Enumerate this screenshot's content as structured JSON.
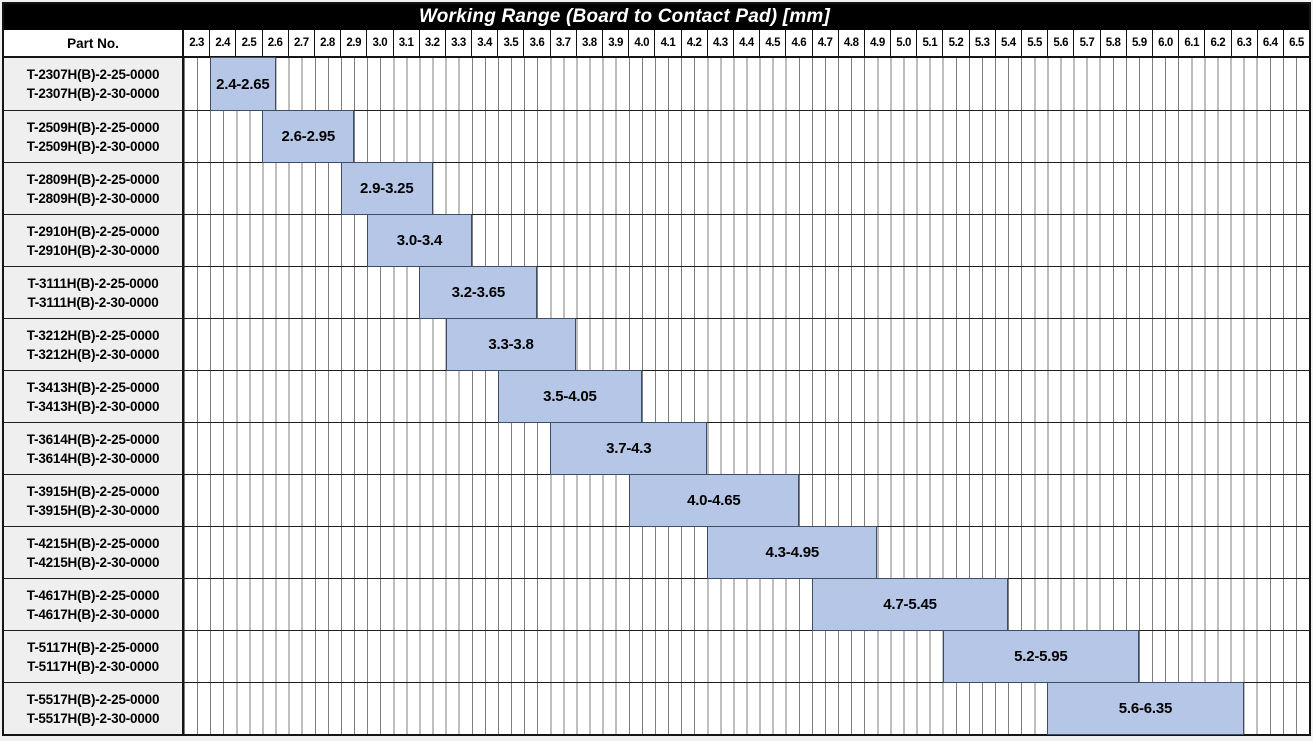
{
  "header": {
    "part_no_label": "Part No."
  },
  "colors": {
    "title_bg": "#000000",
    "title_text": "#ffffff",
    "bar_fill": "#b5c6e6",
    "bar_border": "#3c4d66",
    "part_cell_bg": "#efefef",
    "grid_line": "#7e7e7e"
  },
  "chart_data": {
    "type": "bar",
    "subtype": "horizontal_range_gantt",
    "title": "Working Range (Board to Contact Pad) [mm]",
    "unit": "mm",
    "legend": "none",
    "grid": "on",
    "x_axis": {
      "min": 2.3,
      "max_tick": 6.5,
      "right_edge": 6.6,
      "step": 0.1,
      "minor_step": 0.05,
      "tick_labels": [
        "2.3",
        "2.4",
        "2.5",
        "2.6",
        "2.7",
        "2.8",
        "2.9",
        "3.0",
        "3.1",
        "3.2",
        "3.3",
        "3.4",
        "3.5",
        "3.6",
        "3.7",
        "3.8",
        "3.9",
        "4.0",
        "4.1",
        "4.2",
        "4.3",
        "4.4",
        "4.5",
        "4.6",
        "4.7",
        "4.8",
        "4.9",
        "5.0",
        "5.1",
        "5.2",
        "5.3",
        "5.4",
        "5.5",
        "5.6",
        "5.7",
        "5.8",
        "5.9",
        "6.0",
        "6.1",
        "6.2",
        "6.3",
        "6.4",
        "6.5"
      ]
    },
    "rows": [
      {
        "part_numbers": [
          "T-2307H(B)-2-25-0000",
          "T-2307H(B)-2-30-0000"
        ],
        "range_start": 2.4,
        "range_end": 2.65,
        "range_label": "2.4-2.65"
      },
      {
        "part_numbers": [
          "T-2509H(B)-2-25-0000",
          "T-2509H(B)-2-30-0000"
        ],
        "range_start": 2.6,
        "range_end": 2.95,
        "range_label": "2.6-2.95"
      },
      {
        "part_numbers": [
          "T-2809H(B)-2-25-0000",
          "T-2809H(B)-2-30-0000"
        ],
        "range_start": 2.9,
        "range_end": 3.25,
        "range_label": "2.9-3.25"
      },
      {
        "part_numbers": [
          "T-2910H(B)-2-25-0000",
          "T-2910H(B)-2-30-0000"
        ],
        "range_start": 3.0,
        "range_end": 3.4,
        "range_label": "3.0-3.4"
      },
      {
        "part_numbers": [
          "T-3111H(B)-2-25-0000",
          "T-3111H(B)-2-30-0000"
        ],
        "range_start": 3.2,
        "range_end": 3.65,
        "range_label": "3.2-3.65"
      },
      {
        "part_numbers": [
          "T-3212H(B)-2-25-0000",
          "T-3212H(B)-2-30-0000"
        ],
        "range_start": 3.3,
        "range_end": 3.8,
        "range_label": "3.3-3.8"
      },
      {
        "part_numbers": [
          "T-3413H(B)-2-25-0000",
          "T-3413H(B)-2-30-0000"
        ],
        "range_start": 3.5,
        "range_end": 4.05,
        "range_label": "3.5-4.05"
      },
      {
        "part_numbers": [
          "T-3614H(B)-2-25-0000",
          "T-3614H(B)-2-30-0000"
        ],
        "range_start": 3.7,
        "range_end": 4.3,
        "range_label": "3.7-4.3"
      },
      {
        "part_numbers": [
          "T-3915H(B)-2-25-0000",
          "T-3915H(B)-2-30-0000"
        ],
        "range_start": 4.0,
        "range_end": 4.65,
        "range_label": "4.0-4.65"
      },
      {
        "part_numbers": [
          "T-4215H(B)-2-25-0000",
          "T-4215H(B)-2-30-0000"
        ],
        "range_start": 4.3,
        "range_end": 4.95,
        "range_label": "4.3-4.95"
      },
      {
        "part_numbers": [
          "T-4617H(B)-2-25-0000",
          "T-4617H(B)-2-30-0000"
        ],
        "range_start": 4.7,
        "range_end": 5.45,
        "range_label": "4.7-5.45"
      },
      {
        "part_numbers": [
          "T-5117H(B)-2-25-0000",
          "T-5117H(B)-2-30-0000"
        ],
        "range_start": 5.2,
        "range_end": 5.95,
        "range_label": "5.2-5.95"
      },
      {
        "part_numbers": [
          "T-5517H(B)-2-25-0000",
          "T-5517H(B)-2-30-0000"
        ],
        "range_start": 5.6,
        "range_end": 6.35,
        "range_label": "5.6-6.35"
      }
    ]
  }
}
